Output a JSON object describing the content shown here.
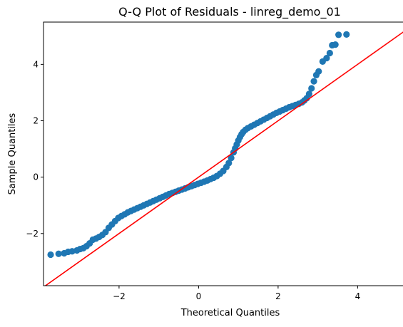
{
  "chart_data": {
    "type": "scatter",
    "title": "Q-Q Plot of Residuals - linreg_demo_01",
    "xlabel": "Theoretical Quantiles",
    "ylabel": "Sample Quantiles",
    "xlim": [
      -3.9,
      5.5
    ],
    "ylim": [
      -3.85,
      5.5
    ],
    "xticks": [
      -2,
      0,
      2,
      4
    ],
    "yticks": [
      -2,
      0,
      2,
      4
    ],
    "xtick_labels": [
      "−2",
      "0",
      "2",
      "4"
    ],
    "ytick_labels": [
      "−2",
      "0",
      "2",
      "4"
    ],
    "grid": false,
    "legend": "none",
    "series": [
      {
        "kind": "points",
        "color": "#1f77b4",
        "x": [
          -3.72,
          -3.52,
          -3.38,
          -3.28,
          -3.18,
          -3.06,
          -2.98,
          -2.9,
          -2.82,
          -2.74,
          -2.66,
          -2.58,
          -2.5,
          -2.42,
          -2.34,
          -2.26,
          -2.18,
          -2.1,
          -2.02,
          -1.94,
          -1.86,
          -1.78,
          -1.7,
          -1.62,
          -1.54,
          -1.46,
          -1.38,
          -1.3,
          -1.22,
          -1.14,
          -1.06,
          -0.98,
          -0.9,
          -0.82,
          -0.74,
          -0.66,
          -0.58,
          -0.5,
          -0.42,
          -0.34,
          -0.26,
          -0.18,
          -0.1,
          -0.02,
          0.06,
          0.14,
          0.22,
          0.3,
          0.38,
          0.46,
          0.54,
          0.62,
          0.7,
          0.76,
          0.82,
          0.88,
          0.92,
          0.96,
          1.0,
          1.04,
          1.08,
          1.12,
          1.18,
          1.24,
          1.32,
          1.4,
          1.48,
          1.56,
          1.64,
          1.72,
          1.8,
          1.88,
          1.96,
          2.04,
          2.12,
          2.2,
          2.28,
          2.36,
          2.44,
          2.52,
          2.6,
          2.66,
          2.72,
          2.78,
          2.84,
          2.9,
          2.96,
          3.02,
          3.12,
          3.22,
          3.3,
          3.36,
          3.44,
          3.52,
          3.72
        ],
        "y": [
          -2.75,
          -2.72,
          -2.7,
          -2.65,
          -2.63,
          -2.6,
          -2.55,
          -2.52,
          -2.45,
          -2.35,
          -2.22,
          -2.18,
          -2.12,
          -2.05,
          -1.95,
          -1.8,
          -1.68,
          -1.56,
          -1.45,
          -1.38,
          -1.32,
          -1.25,
          -1.2,
          -1.15,
          -1.1,
          -1.05,
          -1.0,
          -0.95,
          -0.9,
          -0.85,
          -0.8,
          -0.75,
          -0.7,
          -0.65,
          -0.6,
          -0.56,
          -0.52,
          -0.48,
          -0.44,
          -0.4,
          -0.36,
          -0.32,
          -0.28,
          -0.24,
          -0.2,
          -0.16,
          -0.12,
          -0.07,
          -0.02,
          0.04,
          0.12,
          0.22,
          0.36,
          0.5,
          0.68,
          0.88,
          1.02,
          1.16,
          1.3,
          1.42,
          1.52,
          1.6,
          1.68,
          1.74,
          1.8,
          1.86,
          1.92,
          1.98,
          2.04,
          2.1,
          2.16,
          2.22,
          2.28,
          2.33,
          2.38,
          2.43,
          2.48,
          2.52,
          2.56,
          2.6,
          2.65,
          2.72,
          2.8,
          2.95,
          3.15,
          3.4,
          3.62,
          3.75,
          4.1,
          4.22,
          4.4,
          4.68,
          4.7,
          5.05,
          5.06
        ]
      },
      {
        "kind": "reference-line",
        "color": "#ff0000",
        "x": [
          -3.9,
          5.5
        ],
        "y": [
          -3.9,
          5.5
        ]
      }
    ]
  }
}
